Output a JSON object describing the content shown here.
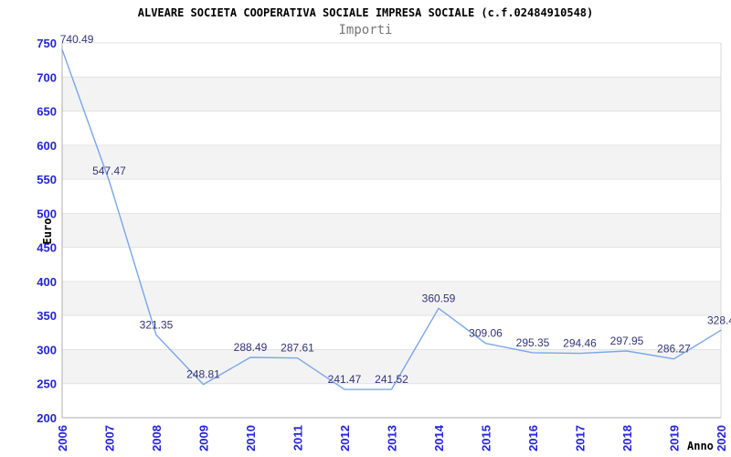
{
  "chart_data": {
    "type": "line",
    "title": "ALVEARE SOCIETA COOPERATIVA SOCIALE IMPRESA SOCIALE (c.f.02484910548)",
    "subtitle": "Importi",
    "xlabel": "Anno",
    "ylabel": "Euro",
    "x": [
      2006,
      2007,
      2008,
      2009,
      2010,
      2011,
      2012,
      2013,
      2014,
      2015,
      2016,
      2017,
      2018,
      2019,
      2020
    ],
    "values": [
      740.49,
      547.47,
      321.35,
      248.81,
      288.49,
      287.61,
      241.47,
      241.52,
      360.59,
      309.06,
      295.35,
      294.46,
      297.95,
      286.27,
      328.4
    ],
    "point_labels": [
      "740.49",
      "547.47",
      "321.35",
      "248.81",
      "288.49",
      "287.61",
      "241.47",
      "241.52",
      "360.59",
      "309.06",
      "295.35",
      "294.46",
      "297.95",
      "286.27",
      "328.4"
    ],
    "ylim": [
      200,
      750
    ],
    "ytick_step": 50,
    "ytick_labels": [
      "200",
      "250",
      "300",
      "350",
      "400",
      "450",
      "500",
      "550",
      "600",
      "650",
      "700",
      "750"
    ],
    "grid": "horizontal-bands",
    "legend_position": "none",
    "colors": {
      "line": "#79a7e8",
      "tick_label": "#2424d6",
      "point_label": "#333377",
      "band_gray": "#f3f3f3",
      "gridline": "#e3e3e3",
      "axis_line": "#aeaeae",
      "right_border": "#d9d9d9",
      "title": "#000000",
      "subtitle": "#757575"
    }
  }
}
